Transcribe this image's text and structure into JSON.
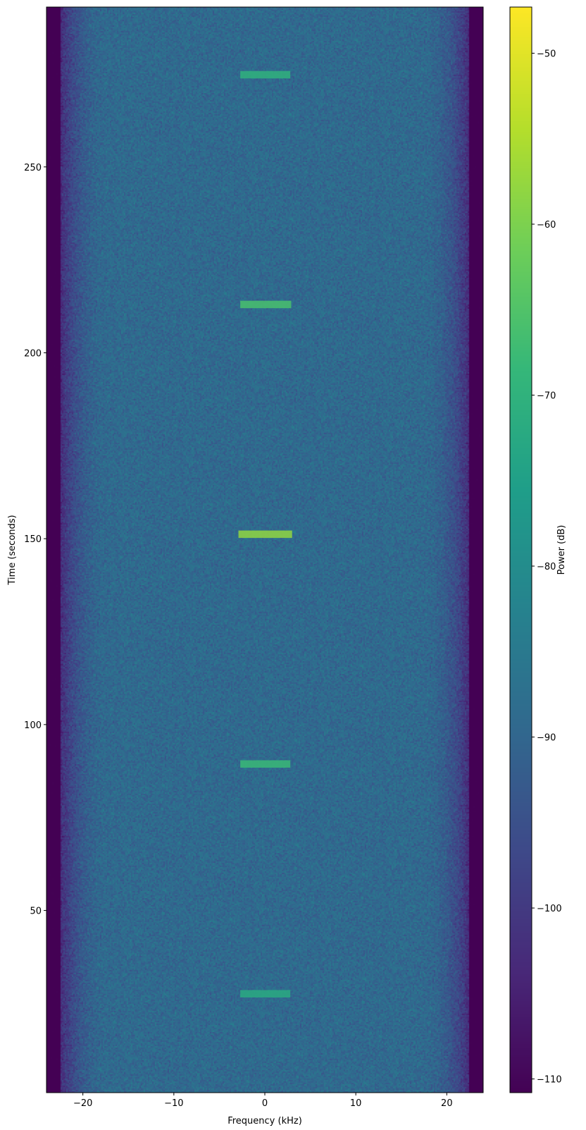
{
  "chart_data": {
    "type": "heatmap",
    "title": "",
    "xlabel": "Frequency (kHz)",
    "ylabel": "Time (seconds)",
    "xlim": [
      -24,
      24
    ],
    "ylim": [
      1,
      293
    ],
    "xticks": [
      -20,
      -10,
      0,
      10,
      20
    ],
    "xtick_labels": [
      "−20",
      "−10",
      "0",
      "10",
      "20"
    ],
    "yticks": [
      50,
      100,
      150,
      200,
      250
    ],
    "ytick_labels": [
      "50",
      "100",
      "150",
      "200",
      "250"
    ],
    "colormap": "viridis",
    "colorbar": {
      "label": "Power (dB)",
      "range": [
        -110.8,
        -47.3
      ],
      "ticks": [
        -110,
        -100,
        -90,
        -80,
        -70,
        -60,
        -50
      ],
      "tick_labels": [
        "−110",
        "−100",
        "−90",
        "−80",
        "−70",
        "−60",
        "−50"
      ]
    },
    "noise_floor_db": -89,
    "passband_edge_khz": [
      -22.5,
      22.5
    ],
    "out_of_band_db": -111,
    "bursts": [
      {
        "time_s": 27.6,
        "f_start_khz": -2.7,
        "f_end_khz": 2.8,
        "duration_s": 2,
        "peak_db": -72
      },
      {
        "time_s": 89.4,
        "f_start_khz": -2.7,
        "f_end_khz": 2.8,
        "duration_s": 2,
        "peak_db": -68
      },
      {
        "time_s": 151.2,
        "f_start_khz": -2.9,
        "f_end_khz": 3.0,
        "duration_s": 2,
        "peak_db": -58
      },
      {
        "time_s": 213.0,
        "f_start_khz": -2.7,
        "f_end_khz": 2.9,
        "duration_s": 2,
        "peak_db": -66
      },
      {
        "time_s": 274.8,
        "f_start_khz": -2.7,
        "f_end_khz": 2.8,
        "duration_s": 2,
        "peak_db": -70
      }
    ],
    "grid": false
  }
}
